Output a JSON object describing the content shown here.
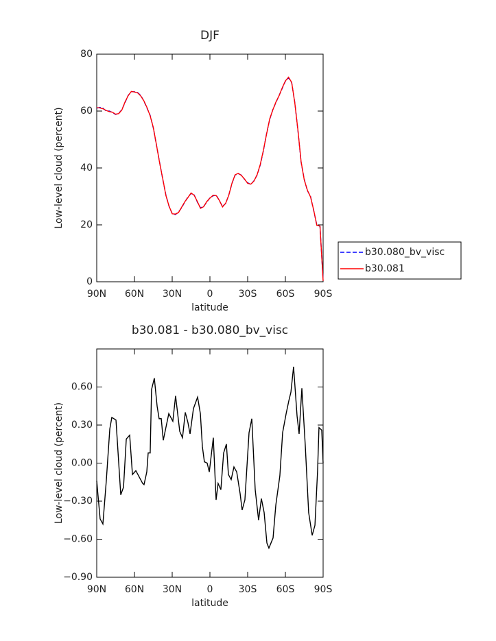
{
  "chart_data": [
    {
      "type": "line",
      "title": "DJF",
      "xlabel": "latitude",
      "ylabel": "Low-level cloud (percent)",
      "x": [
        90,
        87.5,
        85,
        82.5,
        80,
        77.5,
        75,
        72.5,
        70,
        67.5,
        65,
        62.5,
        60,
        57.5,
        55,
        52.5,
        50,
        47.5,
        45,
        42.5,
        40,
        37.5,
        35,
        32.5,
        30,
        27.5,
        25,
        22.5,
        20,
        17.5,
        15,
        12.5,
        10,
        7.5,
        5,
        2.5,
        0,
        -2.5,
        -5,
        -7.5,
        -10,
        -12.5,
        -15,
        -17.5,
        -20,
        -22.5,
        -25,
        -27.5,
        -30,
        -32.5,
        -35,
        -37.5,
        -40,
        -42.5,
        -45,
        -47.5,
        -50,
        -52.5,
        -55,
        -57.5,
        -60,
        -62.5,
        -65,
        -67.5,
        -70,
        -72.5,
        -75,
        -77.5,
        -80,
        -82.5,
        -85,
        -87.5,
        -90
      ],
      "series": [
        {
          "name": "b30.080_bv_visc",
          "color": "#0000ff",
          "linestyle": "dashed",
          "values": [
            61,
            61.3,
            61,
            60,
            60,
            59.5,
            58.8,
            59.2,
            60.5,
            63,
            65.5,
            66.8,
            66.8,
            66.5,
            65.5,
            63.5,
            61,
            58.5,
            54,
            48,
            42,
            36,
            30.5,
            26.5,
            24,
            23.6,
            24.5,
            26,
            28,
            29.8,
            31,
            30.5,
            28,
            26,
            26.5,
            28,
            29.5,
            30.2,
            30.5,
            28.5,
            26.5,
            27.5,
            30.5,
            34.5,
            37.5,
            38,
            37.5,
            36,
            34.8,
            34.2,
            35.5,
            37.5,
            41,
            46,
            52,
            57,
            60.5,
            63,
            65.5,
            68,
            70.5,
            71.7,
            70,
            63,
            53,
            42,
            36,
            32,
            30,
            25,
            20,
            19.5,
            0.5
          ]
        },
        {
          "name": "b30.081",
          "color": "#ff0000",
          "linestyle": "solid",
          "values": [
            61.2,
            61.1,
            60.8,
            60.2,
            59.8,
            59.6,
            58.9,
            59.1,
            60.4,
            63.2,
            65.4,
            66.9,
            66.7,
            66.4,
            65.3,
            63.6,
            61.2,
            58.3,
            54.2,
            48.1,
            41.8,
            36.2,
            30.3,
            26.6,
            23.9,
            23.8,
            24.3,
            26.2,
            28.1,
            29.6,
            31.2,
            30.4,
            28.2,
            25.8,
            26.4,
            28.2,
            29.4,
            30.4,
            30.3,
            28.6,
            26.3,
            27.6,
            30.4,
            34.6,
            37.6,
            38.1,
            37.4,
            36.1,
            34.6,
            34.3,
            35.4,
            37.6,
            41.2,
            46.2,
            51.8,
            57.2,
            60.4,
            63.2,
            65.4,
            68.2,
            70.6,
            71.9,
            70.1,
            62.8,
            53.2,
            42.2,
            35.8,
            32.2,
            29.8,
            25.2,
            19.8,
            19.6,
            0.3
          ]
        }
      ],
      "xlim": [
        90,
        -90
      ],
      "xticks": [
        {
          "value": 90,
          "label": "90N"
        },
        {
          "value": 60,
          "label": "60N"
        },
        {
          "value": 30,
          "label": "30N"
        },
        0,
        {
          "value": -30,
          "label": "30S"
        },
        {
          "value": -60,
          "label": "60S"
        },
        {
          "value": -90,
          "label": "90S"
        }
      ],
      "ylim": [
        0,
        80
      ],
      "yticks": [
        0,
        20,
        40,
        60,
        80
      ],
      "legend": "right"
    },
    {
      "type": "line",
      "title": "b30.081 - b30.080_bv_visc",
      "xlabel": "latitude",
      "ylabel": "Low-level cloud (percent)",
      "x": [
        90,
        87.3,
        85.1,
        82.4,
        79.6,
        78.0,
        74.7,
        70.9,
        68.7,
        66.5,
        63.8,
        61.6,
        58.9,
        53.5,
        52.4,
        50.2,
        49.1,
        47.5,
        46.4,
        44.2,
        42.0,
        40.4,
        38.7,
        37.1,
        32.7,
        29.5,
        27.3,
        24.0,
        21.8,
        19.6,
        17.5,
        15.8,
        13.1,
        9.8,
        7.6,
        6.0,
        4.4,
        2.2,
        0.5,
        -2.7,
        -4.9,
        -6.5,
        -8.7,
        -10.9,
        -13.1,
        -14.7,
        -16.9,
        -19.1,
        -21.3,
        -24.0,
        -25.6,
        -27.8,
        -31.1,
        -33.3,
        -36.0,
        -38.7,
        -40.9,
        -43.1,
        -45.3,
        -46.9,
        -50.2,
        -52.4,
        -55.6,
        -57.8,
        -60.6,
        -62.7,
        -64.4,
        -66.5,
        -69.3,
        -70.9,
        -73.1,
        -75.8,
        -78.5,
        -81.3,
        -83.5,
        -85.6,
        -86.7,
        -88.9,
        -90
      ],
      "series": [
        {
          "name": "b30.081 - b30.080_bv_visc",
          "color": "#000000",
          "linestyle": "solid",
          "values": [
            -0.14,
            -0.44,
            -0.48,
            -0.14,
            0.27,
            0.36,
            0.34,
            -0.25,
            -0.19,
            0.19,
            0.22,
            -0.09,
            -0.06,
            -0.16,
            -0.17,
            -0.07,
            0.08,
            0.08,
            0.58,
            0.67,
            0.45,
            0.35,
            0.35,
            0.18,
            0.39,
            0.33,
            0.53,
            0.25,
            0.2,
            0.4,
            0.32,
            0.23,
            0.43,
            0.52,
            0.39,
            0.13,
            0.01,
            0.0,
            -0.07,
            0.2,
            -0.29,
            -0.16,
            -0.21,
            0.08,
            0.15,
            -0.09,
            -0.13,
            -0.03,
            -0.07,
            -0.24,
            -0.37,
            -0.29,
            0.24,
            0.35,
            -0.21,
            -0.45,
            -0.28,
            -0.39,
            -0.63,
            -0.67,
            -0.59,
            -0.33,
            -0.1,
            0.24,
            0.39,
            0.49,
            0.56,
            0.76,
            0.37,
            0.23,
            0.59,
            0.14,
            -0.39,
            -0.57,
            -0.49,
            -0.06,
            0.28,
            0.26,
            0.0
          ]
        }
      ],
      "xlim": [
        90,
        -90
      ],
      "xticks": [
        {
          "value": 90,
          "label": "90N"
        },
        {
          "value": 60,
          "label": "60N"
        },
        {
          "value": 30,
          "label": "30N"
        },
        0,
        {
          "value": -30,
          "label": "30S"
        },
        {
          "value": -60,
          "label": "60S"
        },
        {
          "value": -90,
          "label": "90S"
        }
      ],
      "ylim": [
        -0.9,
        0.9
      ],
      "yticks": [
        {
          "value": 0.6,
          "label": "0.60"
        },
        {
          "value": 0.3,
          "label": "0.30"
        },
        {
          "value": 0,
          "label": "0.00"
        },
        {
          "value": -0.3,
          "label": "−0.30"
        },
        {
          "value": -0.6,
          "label": "−0.60"
        },
        {
          "value": -0.9,
          "label": "−0.90"
        }
      ]
    }
  ]
}
